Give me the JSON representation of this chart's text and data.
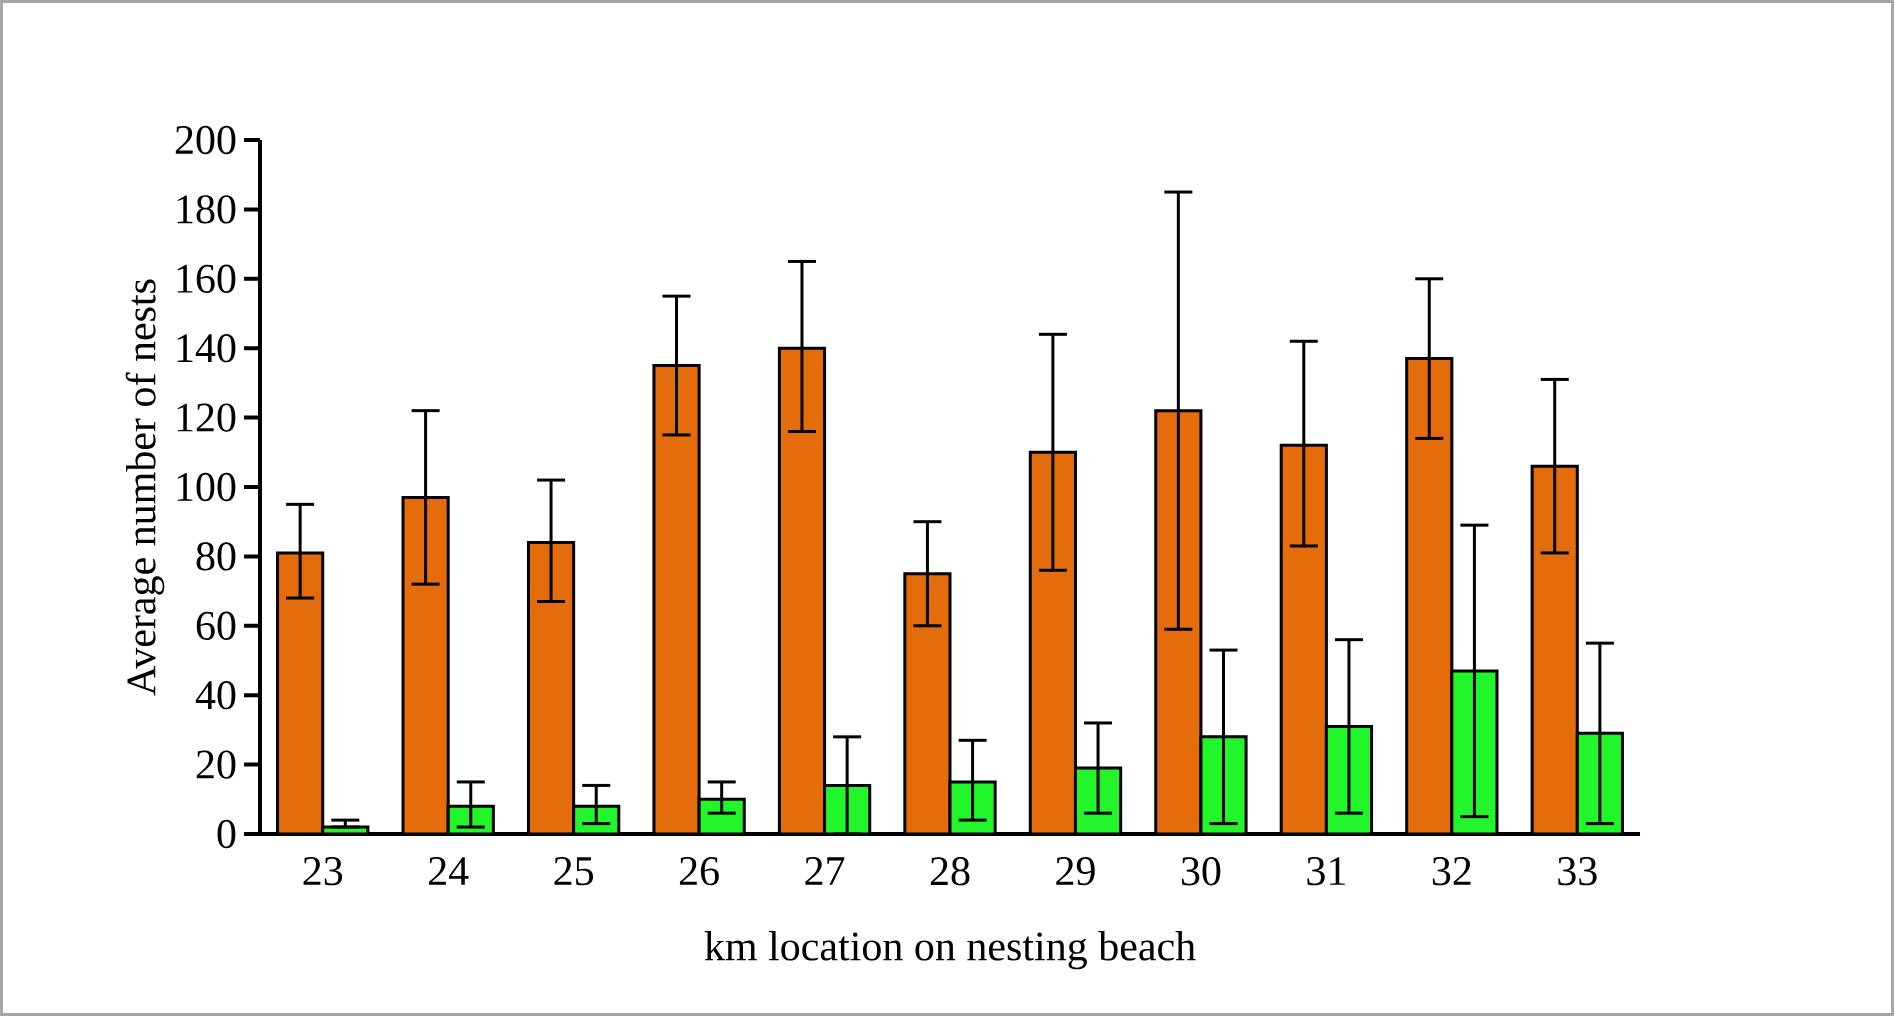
{
  "chart_data": {
    "type": "bar",
    "xlabel": "km location on nesting beach",
    "ylabel": "Average number of nests",
    "categories": [
      "23",
      "24",
      "25",
      "26",
      "27",
      "28",
      "29",
      "30",
      "31",
      "32",
      "33"
    ],
    "series": [
      {
        "color": "#e46c0a",
        "values": [
          81,
          97,
          84,
          135,
          140,
          75,
          110,
          122,
          112,
          137,
          106
        ],
        "errors": [
          [
            68,
            95
          ],
          [
            72,
            122
          ],
          [
            67,
            102
          ],
          [
            115,
            155
          ],
          [
            116,
            165
          ],
          [
            60,
            90
          ],
          [
            76,
            144
          ],
          [
            59,
            185
          ],
          [
            83,
            142
          ],
          [
            114,
            160
          ],
          [
            81,
            131
          ]
        ]
      },
      {
        "color": "#22f52a",
        "values": [
          2,
          8,
          8,
          10,
          14,
          15,
          19,
          28,
          31,
          47,
          29
        ],
        "errors": [
          [
            2,
            4
          ],
          [
            2,
            15
          ],
          [
            3,
            14
          ],
          [
            6,
            15
          ],
          [
            0,
            28
          ],
          [
            4,
            27
          ],
          [
            6,
            32
          ],
          [
            3,
            53
          ],
          [
            6,
            56
          ],
          [
            5,
            89
          ],
          [
            3,
            55
          ]
        ]
      }
    ],
    "ylim": [
      0,
      200
    ],
    "yticks": [
      0,
      20,
      40,
      60,
      80,
      100,
      120,
      140,
      160,
      180,
      200
    ],
    "grid": false
  }
}
